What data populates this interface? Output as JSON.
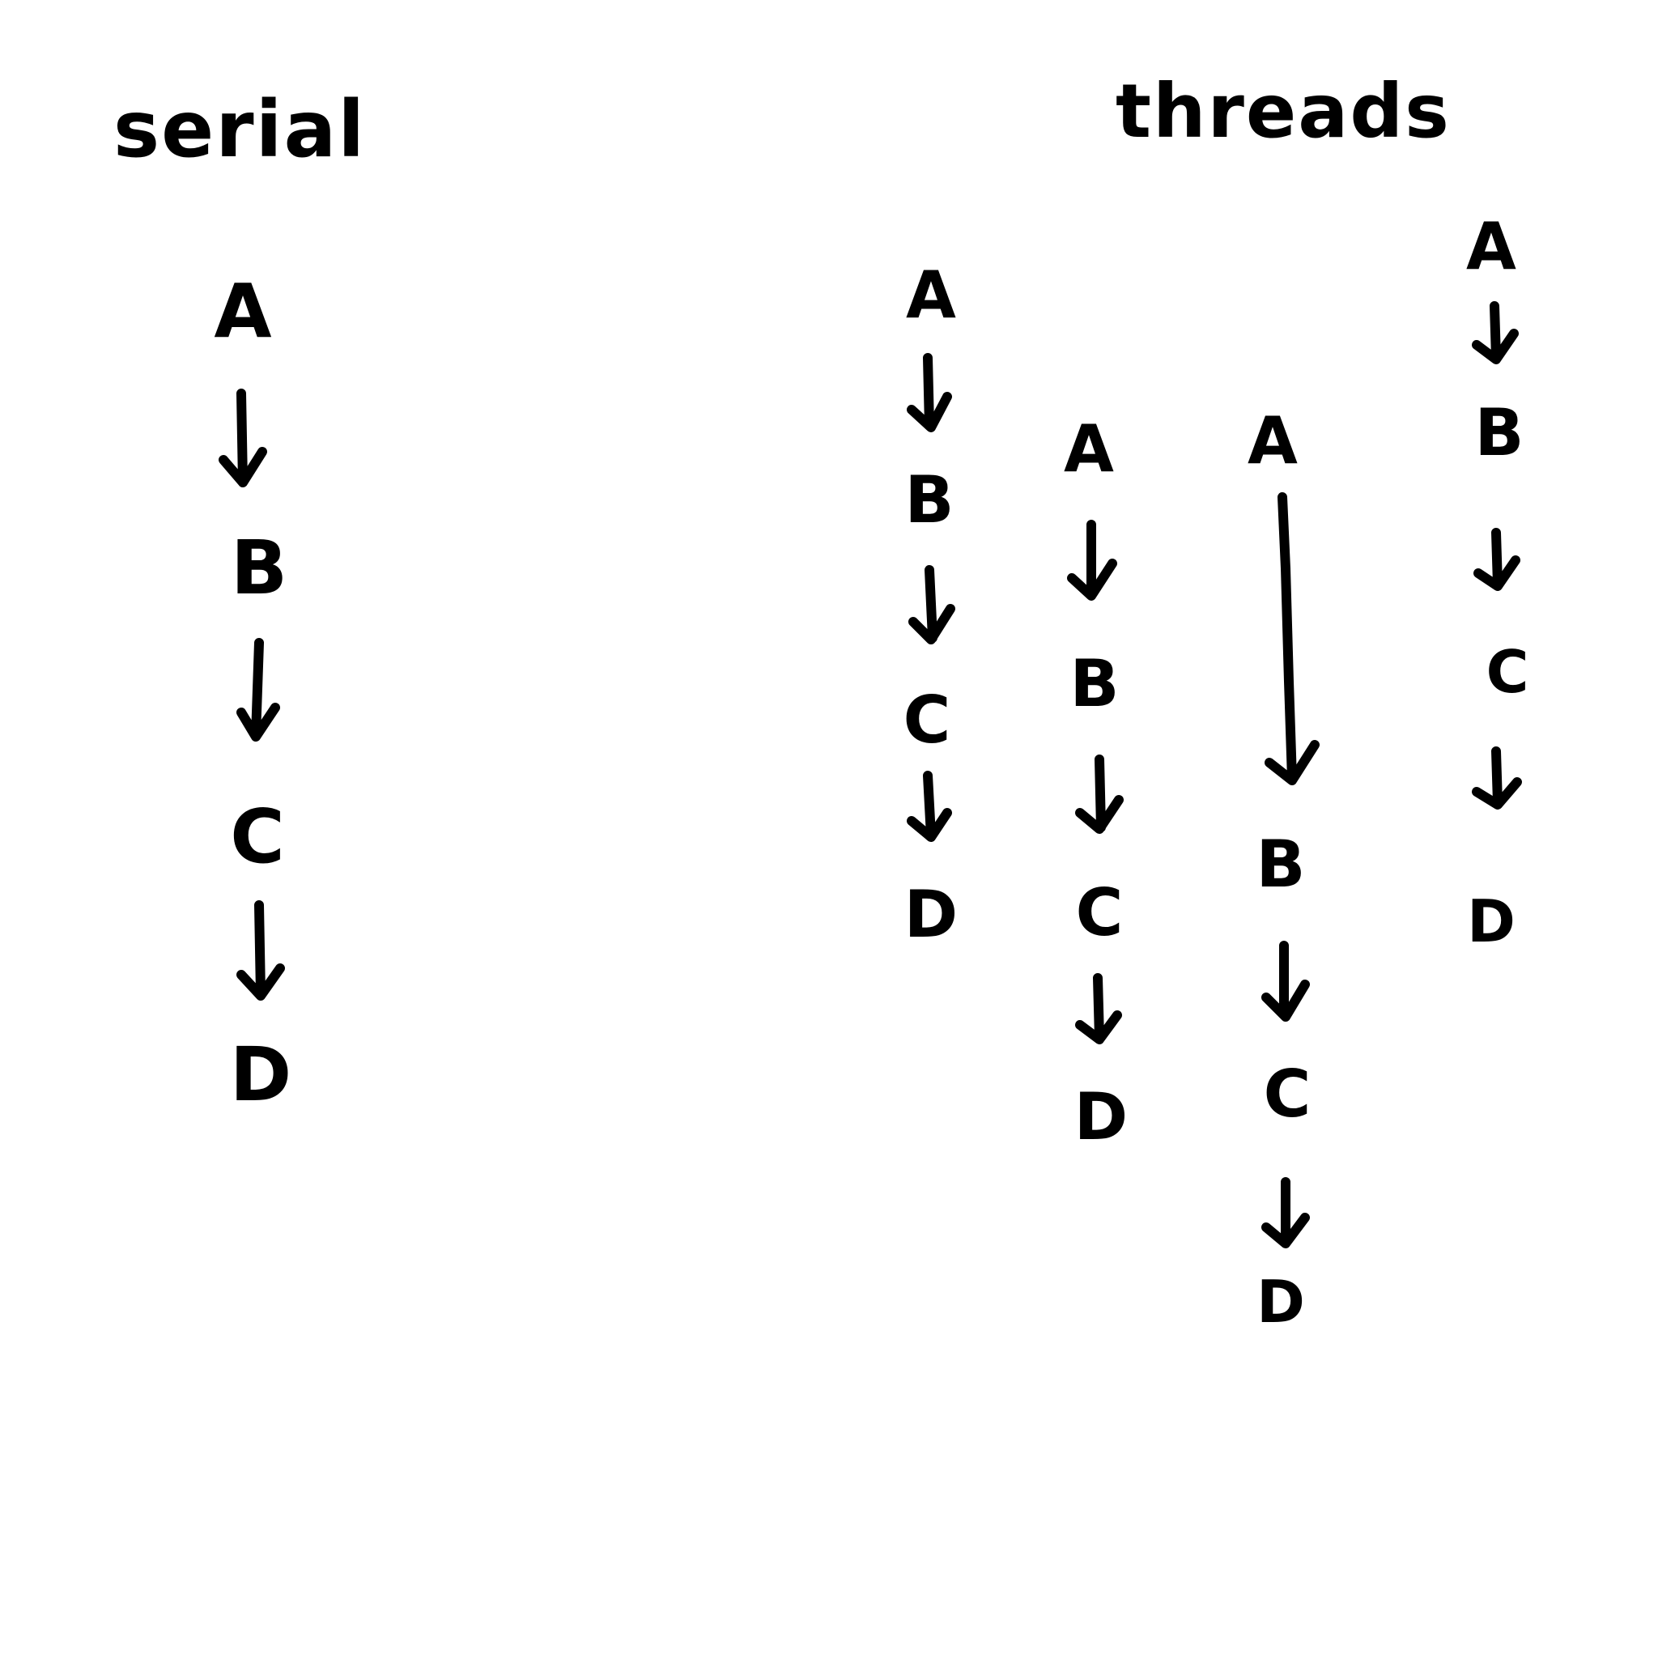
{
  "titles": {
    "serial": "serial",
    "threads": "threads"
  },
  "columns": [
    {
      "id": "serial",
      "steps": [
        "A",
        "B",
        "C",
        "D"
      ]
    },
    {
      "id": "thread-1",
      "steps": [
        "A",
        "B",
        "C",
        "D"
      ]
    },
    {
      "id": "thread-2",
      "steps": [
        "A",
        "B",
        "C",
        "D"
      ]
    },
    {
      "id": "thread-3",
      "steps": [
        "A",
        "B",
        "C",
        "D"
      ]
    },
    {
      "id": "thread-4",
      "steps": [
        "A",
        "B",
        "C",
        "D"
      ]
    }
  ],
  "colors": {
    "ink": "#000000",
    "paper": "#ffffff"
  }
}
